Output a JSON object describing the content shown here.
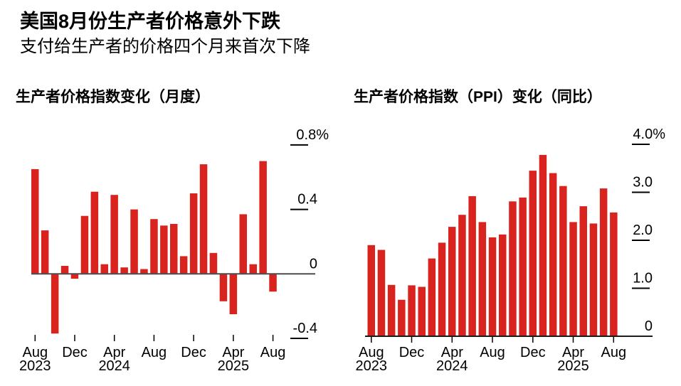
{
  "header": {
    "title": "美国8月份生产者价格意外下跌",
    "subtitle": "支付给生产者的价格四个月来首次下降"
  },
  "colors": {
    "bar": "#d8231e",
    "zero_line": "#4d4d4d",
    "axis_line": "#1a1a1a",
    "tick": "#000000",
    "text": "#000000",
    "background": "#ffffff"
  },
  "chart_data": [
    {
      "type": "bar",
      "title": "生产者价格指数变化（月度）",
      "unit": "%",
      "x": [
        "Aug 2023",
        "Sep 2023",
        "Oct 2023",
        "Nov 2023",
        "Dec 2023",
        "Jan 2024",
        "Feb 2024",
        "Mar 2024",
        "Apr 2024",
        "May 2024",
        "Jun 2024",
        "Jul 2024",
        "Aug 2024",
        "Sep 2024",
        "Oct 2024",
        "Nov 2024",
        "Dec 2024",
        "Jan 2025",
        "Feb 2025",
        "Mar 2025",
        "Apr 2025",
        "May 2025",
        "Jun 2025",
        "Jul 2025",
        "Aug 2025"
      ],
      "values": [
        0.65,
        0.27,
        -0.37,
        0.05,
        -0.03,
        0.36,
        0.51,
        0.06,
        0.49,
        0.04,
        0.4,
        0.03,
        0.34,
        0.3,
        0.31,
        0.11,
        0.5,
        0.68,
        0.13,
        -0.17,
        -0.25,
        0.37,
        0.06,
        0.7,
        -0.11
      ],
      "ylim": [
        -0.4,
        0.8
      ],
      "grid": false,
      "legend": "none",
      "yticks": [
        {
          "label": "0.8%",
          "value": 0.8
        },
        {
          "label": "0.4",
          "value": 0.4
        },
        {
          "label": "0",
          "value": 0
        },
        {
          "label": "-0.4",
          "value": -0.4
        }
      ],
      "xticks": [
        {
          "index": 0,
          "month": "Aug",
          "year": "2023"
        },
        {
          "index": 4,
          "month": "Dec"
        },
        {
          "index": 8,
          "month": "Apr",
          "year": "2024"
        },
        {
          "index": 12,
          "month": "Aug"
        },
        {
          "index": 16,
          "month": "Dec"
        },
        {
          "index": 20,
          "month": "Apr",
          "year": "2025"
        },
        {
          "index": 24,
          "month": "Aug"
        }
      ]
    },
    {
      "type": "bar",
      "title": "生产者价格指数（PPI）变化（同比）",
      "unit": "%",
      "x": [
        "Aug 2023",
        "Sep 2023",
        "Oct 2023",
        "Nov 2023",
        "Dec 2023",
        "Jan 2024",
        "Feb 2024",
        "Mar 2024",
        "Apr 2024",
        "May 2024",
        "Jun 2024",
        "Jul 2024",
        "Aug 2024",
        "Sep 2024",
        "Oct 2024",
        "Nov 2024",
        "Dec 2024",
        "Jan 2025",
        "Feb 2025",
        "Mar 2025",
        "Apr 2025",
        "May 2025",
        "Jun 2025",
        "Jul 2025",
        "Aug 2025"
      ],
      "values": [
        1.9,
        1.8,
        1.07,
        0.76,
        1.06,
        1.03,
        1.62,
        1.95,
        2.28,
        2.53,
        2.92,
        2.38,
        2.06,
        2.12,
        2.81,
        2.89,
        3.45,
        3.78,
        3.4,
        3.13,
        2.38,
        2.71,
        2.35,
        3.08,
        2.58
      ],
      "ylim": [
        0,
        4.0
      ],
      "grid": false,
      "legend": "none",
      "yticks": [
        {
          "label": "4.0%",
          "value": 4.0
        },
        {
          "label": "3.0",
          "value": 3.0
        },
        {
          "label": "2.0",
          "value": 2.0
        },
        {
          "label": "1.0",
          "value": 1.0
        },
        {
          "label": "0",
          "value": 0
        }
      ],
      "xticks": [
        {
          "index": 0,
          "month": "Aug",
          "year": "2023"
        },
        {
          "index": 4,
          "month": "Dec"
        },
        {
          "index": 8,
          "month": "Apr",
          "year": "2024"
        },
        {
          "index": 12,
          "month": "Aug"
        },
        {
          "index": 16,
          "month": "Dec"
        },
        {
          "index": 20,
          "month": "Apr",
          "year": "2025"
        },
        {
          "index": 24,
          "month": "Aug"
        }
      ]
    }
  ]
}
